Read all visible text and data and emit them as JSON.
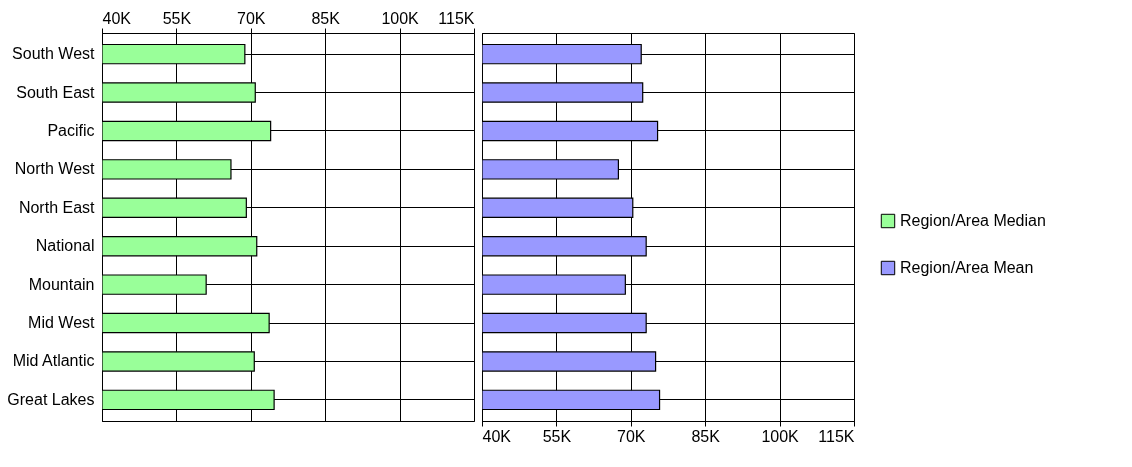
{
  "chart_data": [
    {
      "type": "bar",
      "orientation": "horizontal",
      "categories": [
        "South West",
        "South East",
        "Pacific",
        "North West",
        "North East",
        "National",
        "Mountain",
        "Mid West",
        "Mid Atlantic",
        "Great Lakes"
      ],
      "series": [
        {
          "name": "Region/Area Median",
          "color": "#99ff99",
          "values": [
            68800,
            70900,
            74000,
            66000,
            69100,
            71200,
            61000,
            73700,
            70700,
            74700
          ]
        }
      ],
      "xlim": [
        40000,
        115000
      ],
      "xticks": [
        {
          "value": 40000,
          "label": "40K"
        },
        {
          "value": 55000,
          "label": "55K"
        },
        {
          "value": 70000,
          "label": "70K"
        },
        {
          "value": 85000,
          "label": "85K"
        },
        {
          "value": 100000,
          "label": "100K"
        },
        {
          "value": 115000,
          "label": "115K"
        }
      ],
      "grid": true,
      "legend": "right"
    },
    {
      "type": "bar",
      "orientation": "horizontal",
      "categories": [
        null,
        null,
        null,
        null,
        null,
        null,
        null,
        null,
        null,
        null
      ],
      "series": [
        {
          "name": "Region/Area Mean",
          "color": "#9999ff",
          "values": [
            72100,
            72400,
            75400,
            67500,
            70400,
            73100,
            68900,
            73100,
            75000,
            75800
          ]
        }
      ],
      "xlim": [
        40000,
        115000
      ],
      "xticks": [
        {
          "value": 40000,
          "label": "40K"
        },
        {
          "value": 55000,
          "label": "55K"
        },
        {
          "value": 70000,
          "label": "70K"
        },
        {
          "value": 85000,
          "label": "85K"
        },
        {
          "value": 100000,
          "label": "100K"
        },
        {
          "value": 115000,
          "label": "115K"
        }
      ],
      "grid": true,
      "legend": "right",
      "tick_labels": "x"
    }
  ]
}
